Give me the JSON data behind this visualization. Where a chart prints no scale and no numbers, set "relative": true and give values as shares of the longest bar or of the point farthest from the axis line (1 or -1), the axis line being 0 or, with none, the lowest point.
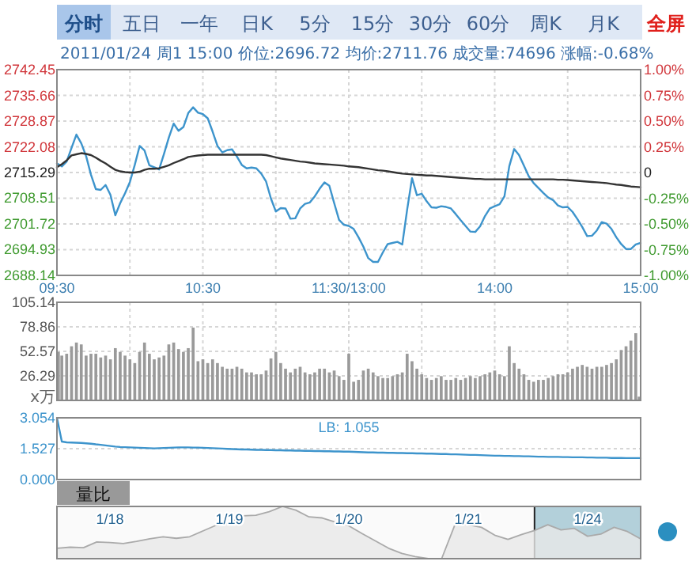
{
  "chart_data": [
    {
      "type": "other",
      "annotations": [
        "分时",
        "五日",
        "一年",
        "日K",
        "5分",
        "15分",
        "30分",
        "60分",
        "周K",
        "月K",
        "全屏"
      ]
    },
    {
      "type": "line",
      "subtitle": "2011/01/24 周1 15:00 价位:2696.72 均价:2711.76 成交量:74696 涨幅:-0.68%",
      "categories": [
        "09:30",
        null,
        null,
        null,
        null,
        null,
        null,
        null,
        null,
        null,
        null,
        null,
        null,
        null,
        null,
        null,
        null,
        null,
        null,
        null,
        null,
        null,
        null,
        null,
        null,
        null,
        null,
        null,
        null,
        null,
        "10:30",
        null,
        null,
        null,
        null,
        null,
        null,
        null,
        null,
        null,
        null,
        null,
        null,
        null,
        null,
        null,
        null,
        null,
        null,
        null,
        null,
        null,
        null,
        null,
        null,
        null,
        null,
        null,
        null,
        null,
        "11:30/13:00",
        null,
        null,
        null,
        null,
        null,
        null,
        null,
        null,
        null,
        null,
        null,
        null,
        null,
        null,
        null,
        null,
        null,
        null,
        null,
        null,
        null,
        null,
        null,
        null,
        null,
        null,
        null,
        null,
        null,
        "14:00",
        null,
        null,
        null,
        null,
        null,
        null,
        null,
        null,
        null,
        null,
        null,
        null,
        null,
        null,
        null,
        null,
        null,
        null,
        null,
        null,
        null,
        null,
        null,
        null,
        null,
        null,
        null,
        null,
        null,
        "15:00"
      ],
      "ylim": [
        2688.14,
        2742.45
      ],
      "yticks": [
        2688.14,
        2694.93,
        2701.72,
        2708.51,
        2715.29,
        2722.08,
        2728.87,
        2735.66,
        2742.45
      ],
      "y2lim": [
        -1,
        1
      ],
      "y2ticks": [
        {
          "value": -1,
          "label": "-1.00%"
        },
        {
          "value": -0.75,
          "label": "-0.75%"
        },
        {
          "value": -0.5,
          "label": "-0.50%"
        },
        {
          "value": -0.25,
          "label": "-0.25%"
        },
        0,
        {
          "value": 0.25,
          "label": "0.25%"
        },
        {
          "value": 0.5,
          "label": "0.50%"
        },
        {
          "value": 0.75,
          "label": "0.75%"
        },
        {
          "value": 1,
          "label": "1.00%"
        }
      ],
      "grid": true,
      "series": [
        {
          "color": "#3d94cc",
          "values": [
            2717.7,
            2716.9,
            2718.2,
            2721.8,
            2725.3,
            2723.0,
            2719.6,
            2714.7,
            2710.9,
            2710.7,
            2712.0,
            2709.4,
            2704.0,
            2707.2,
            2709.8,
            2712.8,
            2717.3,
            2722.3,
            2721.1,
            2717.2,
            2716.7,
            2716.1,
            2720.2,
            2724.5,
            2728.2,
            2726.3,
            2727.3,
            2731.0,
            2732.5,
            2731.1,
            2730.7,
            2729.6,
            2726.1,
            2722.3,
            2720.6,
            2721.2,
            2721.4,
            2719.5,
            2717.3,
            2716.4,
            2716.6,
            2716.4,
            2715.0,
            2712.9,
            2708.4,
            2705.0,
            2705.9,
            2705.8,
            2703.1,
            2703.2,
            2705.8,
            2707.0,
            2707.4,
            2709.0,
            2711.0,
            2712.7,
            2711.8,
            2707.2,
            2702.8,
            2701.5,
            2701.2,
            2700.4,
            2698.2,
            2695.7,
            2692.7,
            2691.7,
            2691.7,
            2694.2,
            2696.4,
            2696.7,
            2697.0,
            2696.3,
            2705.5,
            2713.8,
            2709.3,
            2709.7,
            2707.7,
            2706.1,
            2706.0,
            2706.4,
            2706.2,
            2705.8,
            2704.3,
            2702.7,
            2701.2,
            2699.7,
            2699.6,
            2701.1,
            2703.8,
            2705.8,
            2706.4,
            2706.9,
            2709.0,
            2717.0,
            2721.5,
            2719.9,
            2717.1,
            2714.3,
            2712.5,
            2711.2,
            2709.9,
            2708.7,
            2708.0,
            2706.6,
            2706.1,
            2706.2,
            2704.9,
            2703.0,
            2700.9,
            2698.5,
            2698.6,
            2700.0,
            2702.2,
            2701.8,
            2700.4,
            2698.2,
            2696.4,
            2695.1,
            2695.1,
            2696.3,
            2696.7
          ]
        },
        {
          "color": "#333333",
          "values": [
            2716.7,
            2717.5,
            2718.5,
            2719.8,
            2720.1,
            2720.4,
            2720.2,
            2719.9,
            2719.2,
            2718.4,
            2717.7,
            2716.8,
            2716.0,
            2715.6,
            2715.4,
            2715.3,
            2715.3,
            2715.5,
            2716.0,
            2716.3,
            2716.3,
            2716.4,
            2716.8,
            2717.2,
            2717.8,
            2718.3,
            2718.8,
            2719.4,
            2719.6,
            2719.8,
            2719.9,
            2720.0,
            2720.0,
            2720.0,
            2720.0,
            2720.0,
            2720.0,
            2720.0,
            2720.0,
            2720.0,
            2720.0,
            2720.0,
            2720.0,
            2719.9,
            2719.6,
            2719.3,
            2719.0,
            2718.8,
            2718.6,
            2718.4,
            2718.2,
            2718.1,
            2717.9,
            2717.7,
            2717.6,
            2717.5,
            2717.4,
            2717.3,
            2717.2,
            2717.1,
            2716.9,
            2716.8,
            2716.7,
            2716.5,
            2716.3,
            2716.1,
            2715.9,
            2715.8,
            2715.6,
            2715.4,
            2715.2,
            2715.0,
            2714.9,
            2714.8,
            2714.7,
            2714.6,
            2714.5,
            2714.5,
            2714.4,
            2714.3,
            2714.2,
            2714.1,
            2714.0,
            2713.9,
            2713.8,
            2713.7,
            2713.6,
            2713.6,
            2713.5,
            2713.5,
            2713.5,
            2713.5,
            2713.5,
            2713.5,
            2713.5,
            2713.5,
            2713.5,
            2713.5,
            2713.5,
            2713.5,
            2713.5,
            2713.5,
            2713.5,
            2713.4,
            2713.4,
            2713.3,
            2713.2,
            2713.1,
            2713.0,
            2712.9,
            2712.8,
            2712.7,
            2712.6,
            2712.5,
            2712.3,
            2712.1,
            2712.0,
            2711.8,
            2711.6,
            2711.5,
            2711.4
          ]
        }
      ]
    },
    {
      "type": "bar",
      "ylabel": "x万",
      "color": "#9a9a9a",
      "categories": [
        null,
        null,
        null,
        null,
        null,
        null,
        null,
        null,
        null,
        null,
        null,
        null,
        null,
        null,
        null,
        null,
        null,
        null,
        null,
        null,
        null,
        null,
        null,
        null,
        null,
        null,
        null,
        null,
        null,
        null,
        null,
        null,
        null,
        null,
        null,
        null,
        null,
        null,
        null,
        null,
        null,
        null,
        null,
        null,
        null,
        null,
        null,
        null,
        null,
        null,
        null,
        null,
        null,
        null,
        null,
        null,
        null,
        null,
        null,
        null,
        null,
        null,
        null,
        null,
        null,
        null,
        null,
        null,
        null,
        null,
        null,
        null,
        null,
        null,
        null,
        null,
        null,
        null,
        null,
        null,
        null,
        null,
        null,
        null,
        null,
        null,
        null,
        null,
        null,
        null,
        null,
        null,
        null,
        null,
        null,
        null,
        null,
        null,
        null,
        null,
        null,
        null,
        null,
        null,
        null,
        null,
        null,
        null,
        null,
        null,
        null,
        null,
        null,
        null,
        null,
        null,
        null,
        null,
        null,
        null,
        null
      ],
      "ylim": [
        0,
        105.14
      ],
      "yticks": [
        26.29,
        52.57,
        78.86,
        105.14
      ],
      "grid": true,
      "tick_labels": "y",
      "values": [
        52,
        48,
        50,
        58,
        62,
        60,
        48,
        50,
        50,
        46,
        48,
        44,
        56,
        52,
        48,
        44,
        40,
        52,
        62,
        50,
        44,
        46,
        48,
        60,
        62,
        55,
        52,
        56,
        78,
        42,
        44,
        40,
        44,
        40,
        36,
        34,
        34,
        36,
        34,
        30,
        30,
        28,
        28,
        32,
        45,
        52,
        40,
        34,
        30,
        34,
        36,
        30,
        28,
        30,
        34,
        34,
        30,
        32,
        26,
        22,
        50,
        20,
        22,
        32,
        34,
        30,
        26,
        24,
        24,
        26,
        28,
        30,
        50,
        42,
        34,
        28,
        24,
        22,
        24,
        26,
        22,
        22,
        24,
        22,
        24,
        26,
        24,
        26,
        28,
        30,
        32,
        28,
        26,
        58,
        40,
        34,
        28,
        22,
        20,
        22,
        22,
        24,
        26,
        28,
        28,
        30,
        34,
        36,
        38,
        36,
        34,
        36,
        36,
        38,
        40,
        44,
        54,
        58,
        64,
        72,
        4
      ]
    },
    {
      "type": "line",
      "categories": [
        null,
        null,
        null,
        null,
        null,
        null,
        null,
        null,
        null,
        null,
        null,
        null,
        null,
        null,
        null,
        null,
        null,
        null,
        null,
        null,
        null,
        null,
        null,
        null,
        null,
        null,
        null,
        null,
        null,
        null,
        null,
        null,
        null,
        null,
        null,
        null,
        null,
        null,
        null,
        null,
        null,
        null,
        null,
        null,
        null,
        null,
        null,
        null,
        null,
        null,
        null,
        null,
        null,
        null,
        null,
        null,
        null,
        null,
        null,
        null,
        null,
        null,
        null,
        null,
        null,
        null,
        null,
        null,
        null,
        null,
        null,
        null,
        null,
        null,
        null,
        null,
        null,
        null,
        null,
        null,
        null,
        null,
        null,
        null,
        null,
        null,
        null,
        null,
        null,
        null,
        null,
        null,
        null,
        null,
        null,
        null,
        null,
        null,
        null,
        null,
        null,
        null,
        null,
        null,
        null,
        null,
        null,
        null,
        null,
        null,
        null,
        null,
        null,
        null,
        null,
        null,
        null,
        null,
        null,
        null,
        null
      ],
      "ylim": [
        0,
        3.054
      ],
      "yticks": [
        {
          "value": 0,
          "label": "0.000"
        },
        1.527,
        3.054
      ],
      "grid": "y",
      "tick_labels": "y",
      "annotations": [
        "LB: 1.055",
        "量比"
      ],
      "series": [
        {
          "color": "#3d94cc",
          "values": [
            3.05,
            1.88,
            1.84,
            1.83,
            1.82,
            1.81,
            1.79,
            1.77,
            1.74,
            1.72,
            1.69,
            1.66,
            1.63,
            1.61,
            1.6,
            1.59,
            1.58,
            1.57,
            1.56,
            1.55,
            1.54,
            1.55,
            1.56,
            1.57,
            1.58,
            1.59,
            1.59,
            1.59,
            1.58,
            1.58,
            1.57,
            1.56,
            1.55,
            1.54,
            1.53,
            1.52,
            1.51,
            1.5,
            1.49,
            1.49,
            1.48,
            1.47,
            1.47,
            1.46,
            1.46,
            1.45,
            1.45,
            1.44,
            1.44,
            1.43,
            1.43,
            1.42,
            1.42,
            1.41,
            1.41,
            1.4,
            1.4,
            1.39,
            1.39,
            1.38,
            1.38,
            1.37,
            1.36,
            1.35,
            1.34,
            1.34,
            1.33,
            1.33,
            1.32,
            1.32,
            1.31,
            1.31,
            1.3,
            1.3,
            1.29,
            1.29,
            1.28,
            1.28,
            1.27,
            1.26,
            1.26,
            1.25,
            1.25,
            1.24,
            1.23,
            1.22,
            1.22,
            1.21,
            1.2,
            1.19,
            1.18,
            1.18,
            1.17,
            1.17,
            1.16,
            1.16,
            1.15,
            1.15,
            1.14,
            1.13,
            1.13,
            1.12,
            1.12,
            1.12,
            1.11,
            1.11,
            1.1,
            1.1,
            1.1,
            1.09,
            1.09,
            1.08,
            1.08,
            1.08,
            1.07,
            1.07,
            1.07,
            1.06,
            1.06,
            1.06,
            1.06
          ]
        }
      ]
    },
    {
      "type": "area",
      "relative": true,
      "color": "#aaaaaa",
      "categories": [
        null,
        null,
        null,
        null,
        "1/18",
        null,
        null,
        null,
        null,
        null,
        null,
        null,
        null,
        "1/19",
        null,
        null,
        null,
        null,
        null,
        null,
        null,
        null,
        "1/20",
        null,
        null,
        null,
        null,
        null,
        null,
        null,
        null,
        "1/21",
        null,
        null,
        null,
        null,
        null,
        null,
        null,
        null,
        "1/24",
        null,
        null,
        null,
        null
      ],
      "values": [
        0.2,
        0.22,
        0.21,
        0.32,
        0.31,
        0.29,
        0.33,
        0.38,
        0.42,
        0.39,
        0.42,
        0.53,
        0.64,
        0.68,
        0.82,
        0.83,
        0.9,
        1.0,
        0.93,
        0.8,
        0.78,
        0.7,
        0.63,
        0.48,
        0.34,
        0.2,
        0.1,
        0.04,
        0,
        0,
        0.65,
        0.65,
        0.6,
        0.45,
        0.37,
        0.46,
        0.54,
        0.65,
        0.55,
        0.58,
        0.43,
        0.47,
        0.6,
        0.52,
        0.38
      ]
    }
  ]
}
